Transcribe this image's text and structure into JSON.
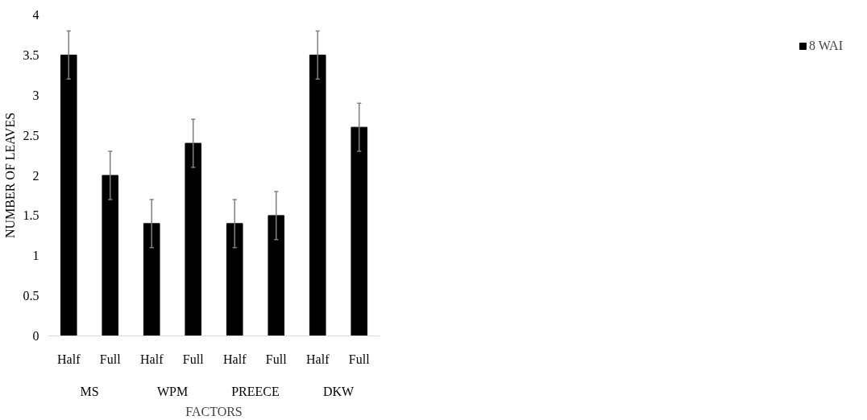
{
  "chart_data": {
    "type": "bar",
    "xlabel": "FACTORS",
    "ylabel": "NUMBER OF LEAVES",
    "categories": [
      "Half",
      "Full",
      "Half",
      "Full",
      "Half",
      "Full",
      "Half",
      "Full"
    ],
    "annotations": [
      "MS",
      "WPM",
      "PREECE",
      "DKW"
    ],
    "series": [
      {
        "name": "8 WAI",
        "color": "#000000",
        "values": [
          3.5,
          2.0,
          1.4,
          2.4,
          1.4,
          1.5,
          3.5,
          2.6
        ],
        "errors": [
          0.3,
          0.3,
          0.3,
          0.3,
          0.3,
          0.3,
          0.3,
          0.3
        ]
      }
    ],
    "ylim": [
      0,
      4
    ],
    "yticks": [
      0,
      0.5,
      1,
      1.5,
      2,
      2.5,
      3,
      3.5,
      4
    ],
    "grid": false,
    "legend": "right"
  }
}
